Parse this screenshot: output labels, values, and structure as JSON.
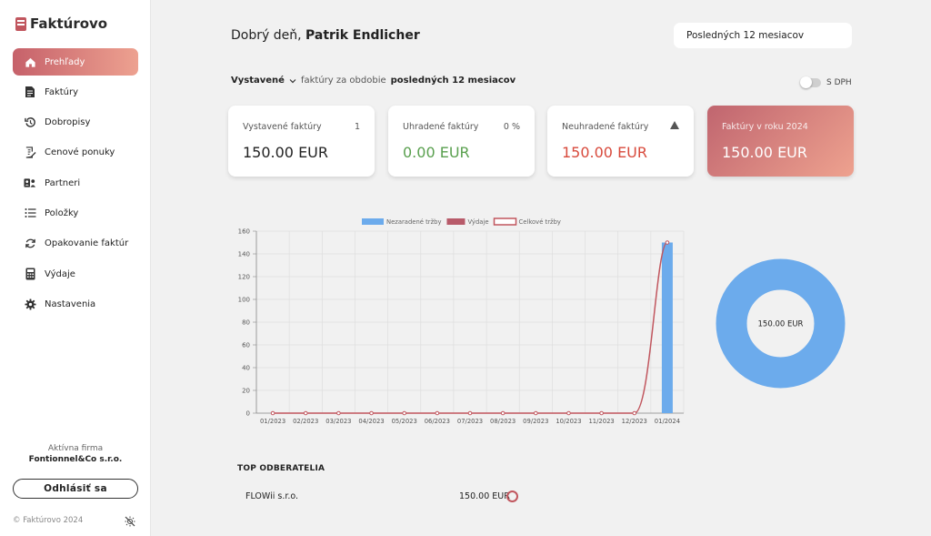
{
  "app": {
    "name": "Faktúrovo"
  },
  "sidebar": {
    "items": [
      {
        "label": "Prehľady",
        "icon": "home-icon",
        "active": true
      },
      {
        "label": "Faktúry",
        "icon": "invoice-icon"
      },
      {
        "label": "Dobropisy",
        "icon": "history-icon"
      },
      {
        "label": "Cenové ponuky",
        "icon": "quote-icon"
      },
      {
        "label": "Partneri",
        "icon": "partners-icon"
      },
      {
        "label": "Položky",
        "icon": "list-icon"
      },
      {
        "label": "Opakovanie faktúr",
        "icon": "repeat-icon"
      },
      {
        "label": "Výdaje",
        "icon": "calculator-icon"
      },
      {
        "label": "Nastavenia",
        "icon": "gear-icon"
      }
    ],
    "active_firm_title": "Aktívna firma",
    "active_firm_name": "Fontionnel&Co s.r.o.",
    "logout_label": "Odhlásiť sa",
    "copyright": "© Faktúrovo 2024"
  },
  "header": {
    "greeting_prefix": "Dobrý deň,",
    "user_name": "Patrik Endlicher",
    "period_selected": "Posledných 12 mesiacov"
  },
  "filter": {
    "dropdown_label": "Vystavené",
    "text": "faktúry za obdobie",
    "period": "posledných 12 mesiacov",
    "vat_toggle_label": "S DPH"
  },
  "cards": [
    {
      "label": "Vystavené faktúry",
      "aux": "1",
      "value": "150.00 EUR",
      "value_color": "#222222"
    },
    {
      "label": "Uhradené faktúry",
      "aux": "0 %",
      "value": "0.00 EUR",
      "value_color": "#5aa04f"
    },
    {
      "label": "Neuhradené faktúry",
      "value": "150.00 EUR",
      "value_color": "#d84a3c"
    },
    {
      "label": "Faktúry v roku 2024",
      "value": "150.00 EUR",
      "value_color": "#ffffff"
    }
  ],
  "chart_data": [
    {
      "type": "bar",
      "categories": [
        "01/2023",
        "02/2023",
        "03/2023",
        "04/2023",
        "05/2023",
        "06/2023",
        "07/2023",
        "08/2023",
        "09/2023",
        "10/2023",
        "11/2023",
        "12/2023",
        "01/2024"
      ],
      "series": [
        {
          "name": "Nezaradené tržby",
          "kind": "bar",
          "color": "#6cabec",
          "values": [
            0,
            0,
            0,
            0,
            0,
            0,
            0,
            0,
            0,
            0,
            0,
            0,
            150
          ]
        },
        {
          "name": "Výdaje",
          "kind": "bar",
          "color": "#b85b6a",
          "values": [
            0,
            0,
            0,
            0,
            0,
            0,
            0,
            0,
            0,
            0,
            0,
            0,
            0
          ]
        },
        {
          "name": "Celkové tržby",
          "kind": "line",
          "color": "#c1565e",
          "values": [
            0,
            0,
            0,
            0,
            0,
            0,
            0,
            0,
            0,
            0,
            0,
            0,
            150
          ]
        }
      ],
      "ylim": [
        0,
        160
      ],
      "yticks": [
        0,
        20,
        40,
        60,
        80,
        100,
        120,
        140,
        160
      ],
      "grid": true,
      "legend": "top"
    },
    {
      "type": "pie",
      "donut": true,
      "labels": [
        "Nezaradené tržby"
      ],
      "values": [
        150
      ],
      "colors": [
        "#6cabec"
      ],
      "center_label": "150.00 EUR"
    }
  ],
  "top_customers": {
    "title": "TOP ODBERATELIA",
    "rows": [
      {
        "name": "FLOWii s.r.o.",
        "amount": "150.00 EUR"
      }
    ]
  }
}
